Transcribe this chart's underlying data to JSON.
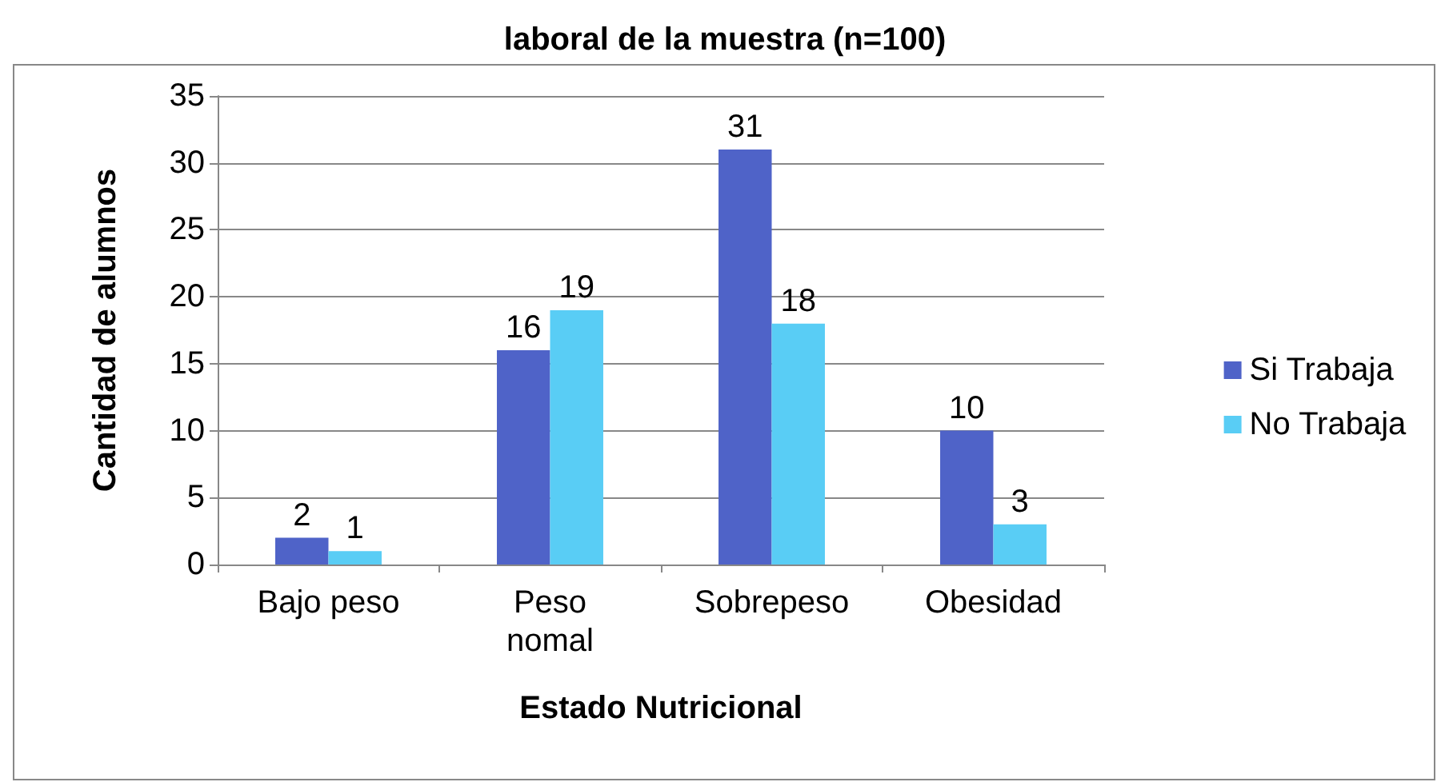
{
  "chart_data": {
    "type": "bar",
    "title": "laboral de la muestra (n=100)",
    "xlabel": "Estado Nutricional",
    "ylabel": "Cantidad de alumnos",
    "categories": [
      "Bajo peso",
      "Peso\nnomal",
      "Sobrepeso",
      "Obesidad"
    ],
    "series": [
      {
        "name": "Si Trabaja",
        "color": "#4f63c8",
        "values": [
          2,
          16,
          31,
          10
        ]
      },
      {
        "name": "No Trabaja",
        "color": "#59cdf5",
        "values": [
          1,
          19,
          18,
          3
        ]
      }
    ],
    "ylim": [
      0,
      35
    ],
    "yticks": [
      0,
      5,
      10,
      15,
      20,
      25,
      30,
      35
    ],
    "grid": "y",
    "legend": "right",
    "data_labels": true
  }
}
